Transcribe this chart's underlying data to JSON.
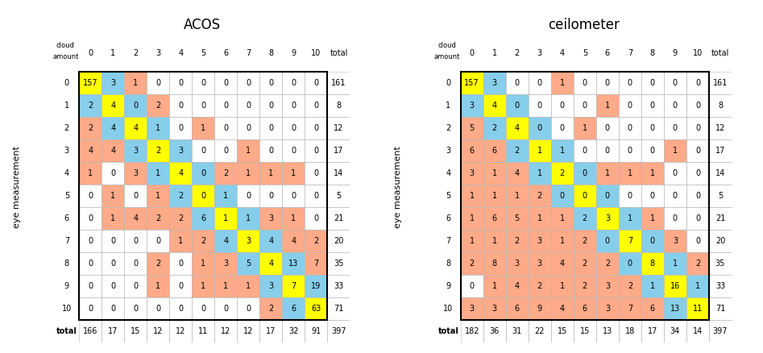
{
  "title_left": "ACOS",
  "title_right": "ceilometer",
  "col_labels": [
    "0",
    "1",
    "2",
    "3",
    "4",
    "5",
    "6",
    "7",
    "8",
    "9",
    "10",
    "total"
  ],
  "row_labels": [
    "0",
    "1",
    "2",
    "3",
    "4",
    "5",
    "6",
    "7",
    "8",
    "9",
    "10",
    "total"
  ],
  "acos_data": [
    [
      157,
      3,
      1,
      0,
      0,
      0,
      0,
      0,
      0,
      0,
      0,
      161
    ],
    [
      2,
      4,
      0,
      2,
      0,
      0,
      0,
      0,
      0,
      0,
      0,
      8
    ],
    [
      2,
      4,
      4,
      1,
      0,
      1,
      0,
      0,
      0,
      0,
      0,
      12
    ],
    [
      4,
      4,
      3,
      2,
      3,
      0,
      0,
      1,
      0,
      0,
      0,
      17
    ],
    [
      1,
      0,
      3,
      1,
      4,
      0,
      2,
      1,
      1,
      1,
      0,
      14
    ],
    [
      0,
      1,
      0,
      1,
      2,
      0,
      1,
      0,
      0,
      0,
      0,
      5
    ],
    [
      0,
      1,
      4,
      2,
      2,
      6,
      1,
      1,
      3,
      1,
      0,
      21
    ],
    [
      0,
      0,
      0,
      0,
      1,
      2,
      4,
      3,
      4,
      4,
      2,
      20
    ],
    [
      0,
      0,
      0,
      2,
      0,
      1,
      3,
      5,
      4,
      13,
      7,
      35
    ],
    [
      0,
      0,
      0,
      1,
      0,
      1,
      1,
      1,
      3,
      7,
      19,
      33
    ],
    [
      0,
      0,
      0,
      0,
      0,
      0,
      0,
      0,
      2,
      6,
      63,
      71
    ],
    [
      166,
      17,
      15,
      12,
      12,
      11,
      12,
      12,
      17,
      32,
      91,
      397
    ]
  ],
  "ceil_data": [
    [
      157,
      3,
      0,
      0,
      1,
      0,
      0,
      0,
      0,
      0,
      0,
      161
    ],
    [
      3,
      4,
      0,
      0,
      0,
      0,
      1,
      0,
      0,
      0,
      0,
      8
    ],
    [
      5,
      2,
      4,
      0,
      0,
      1,
      0,
      0,
      0,
      0,
      0,
      12
    ],
    [
      6,
      6,
      2,
      1,
      1,
      0,
      0,
      0,
      0,
      1,
      0,
      17
    ],
    [
      3,
      1,
      4,
      1,
      2,
      0,
      1,
      1,
      1,
      0,
      0,
      14
    ],
    [
      1,
      1,
      1,
      2,
      0,
      0,
      0,
      0,
      0,
      0,
      0,
      5
    ],
    [
      1,
      6,
      5,
      1,
      1,
      2,
      3,
      1,
      1,
      0,
      0,
      21
    ],
    [
      1,
      1,
      2,
      3,
      1,
      2,
      0,
      7,
      0,
      3,
      0,
      20
    ],
    [
      2,
      8,
      3,
      3,
      4,
      2,
      2,
      0,
      8,
      1,
      2,
      35
    ],
    [
      0,
      1,
      4,
      2,
      1,
      2,
      3,
      2,
      1,
      16,
      1,
      33
    ],
    [
      3,
      3,
      6,
      9,
      4,
      6,
      3,
      7,
      6,
      13,
      11,
      71
    ],
    [
      182,
      36,
      31,
      22,
      15,
      15,
      13,
      18,
      17,
      34,
      14,
      397
    ]
  ],
  "color_yellow": "#FFFF00",
  "color_blue": "#87CEEB",
  "color_salmon": "#FFAA88",
  "color_white": "#FFFFFF",
  "eye_label": "eye measurement",
  "cloud_line1": "cloud",
  "cloud_line2": "amount",
  "total_label": "total",
  "title_fontsize": 12,
  "header_fontsize": 7,
  "cell_fontsize": 7,
  "total_fontsize": 7,
  "eye_fontsize": 8
}
